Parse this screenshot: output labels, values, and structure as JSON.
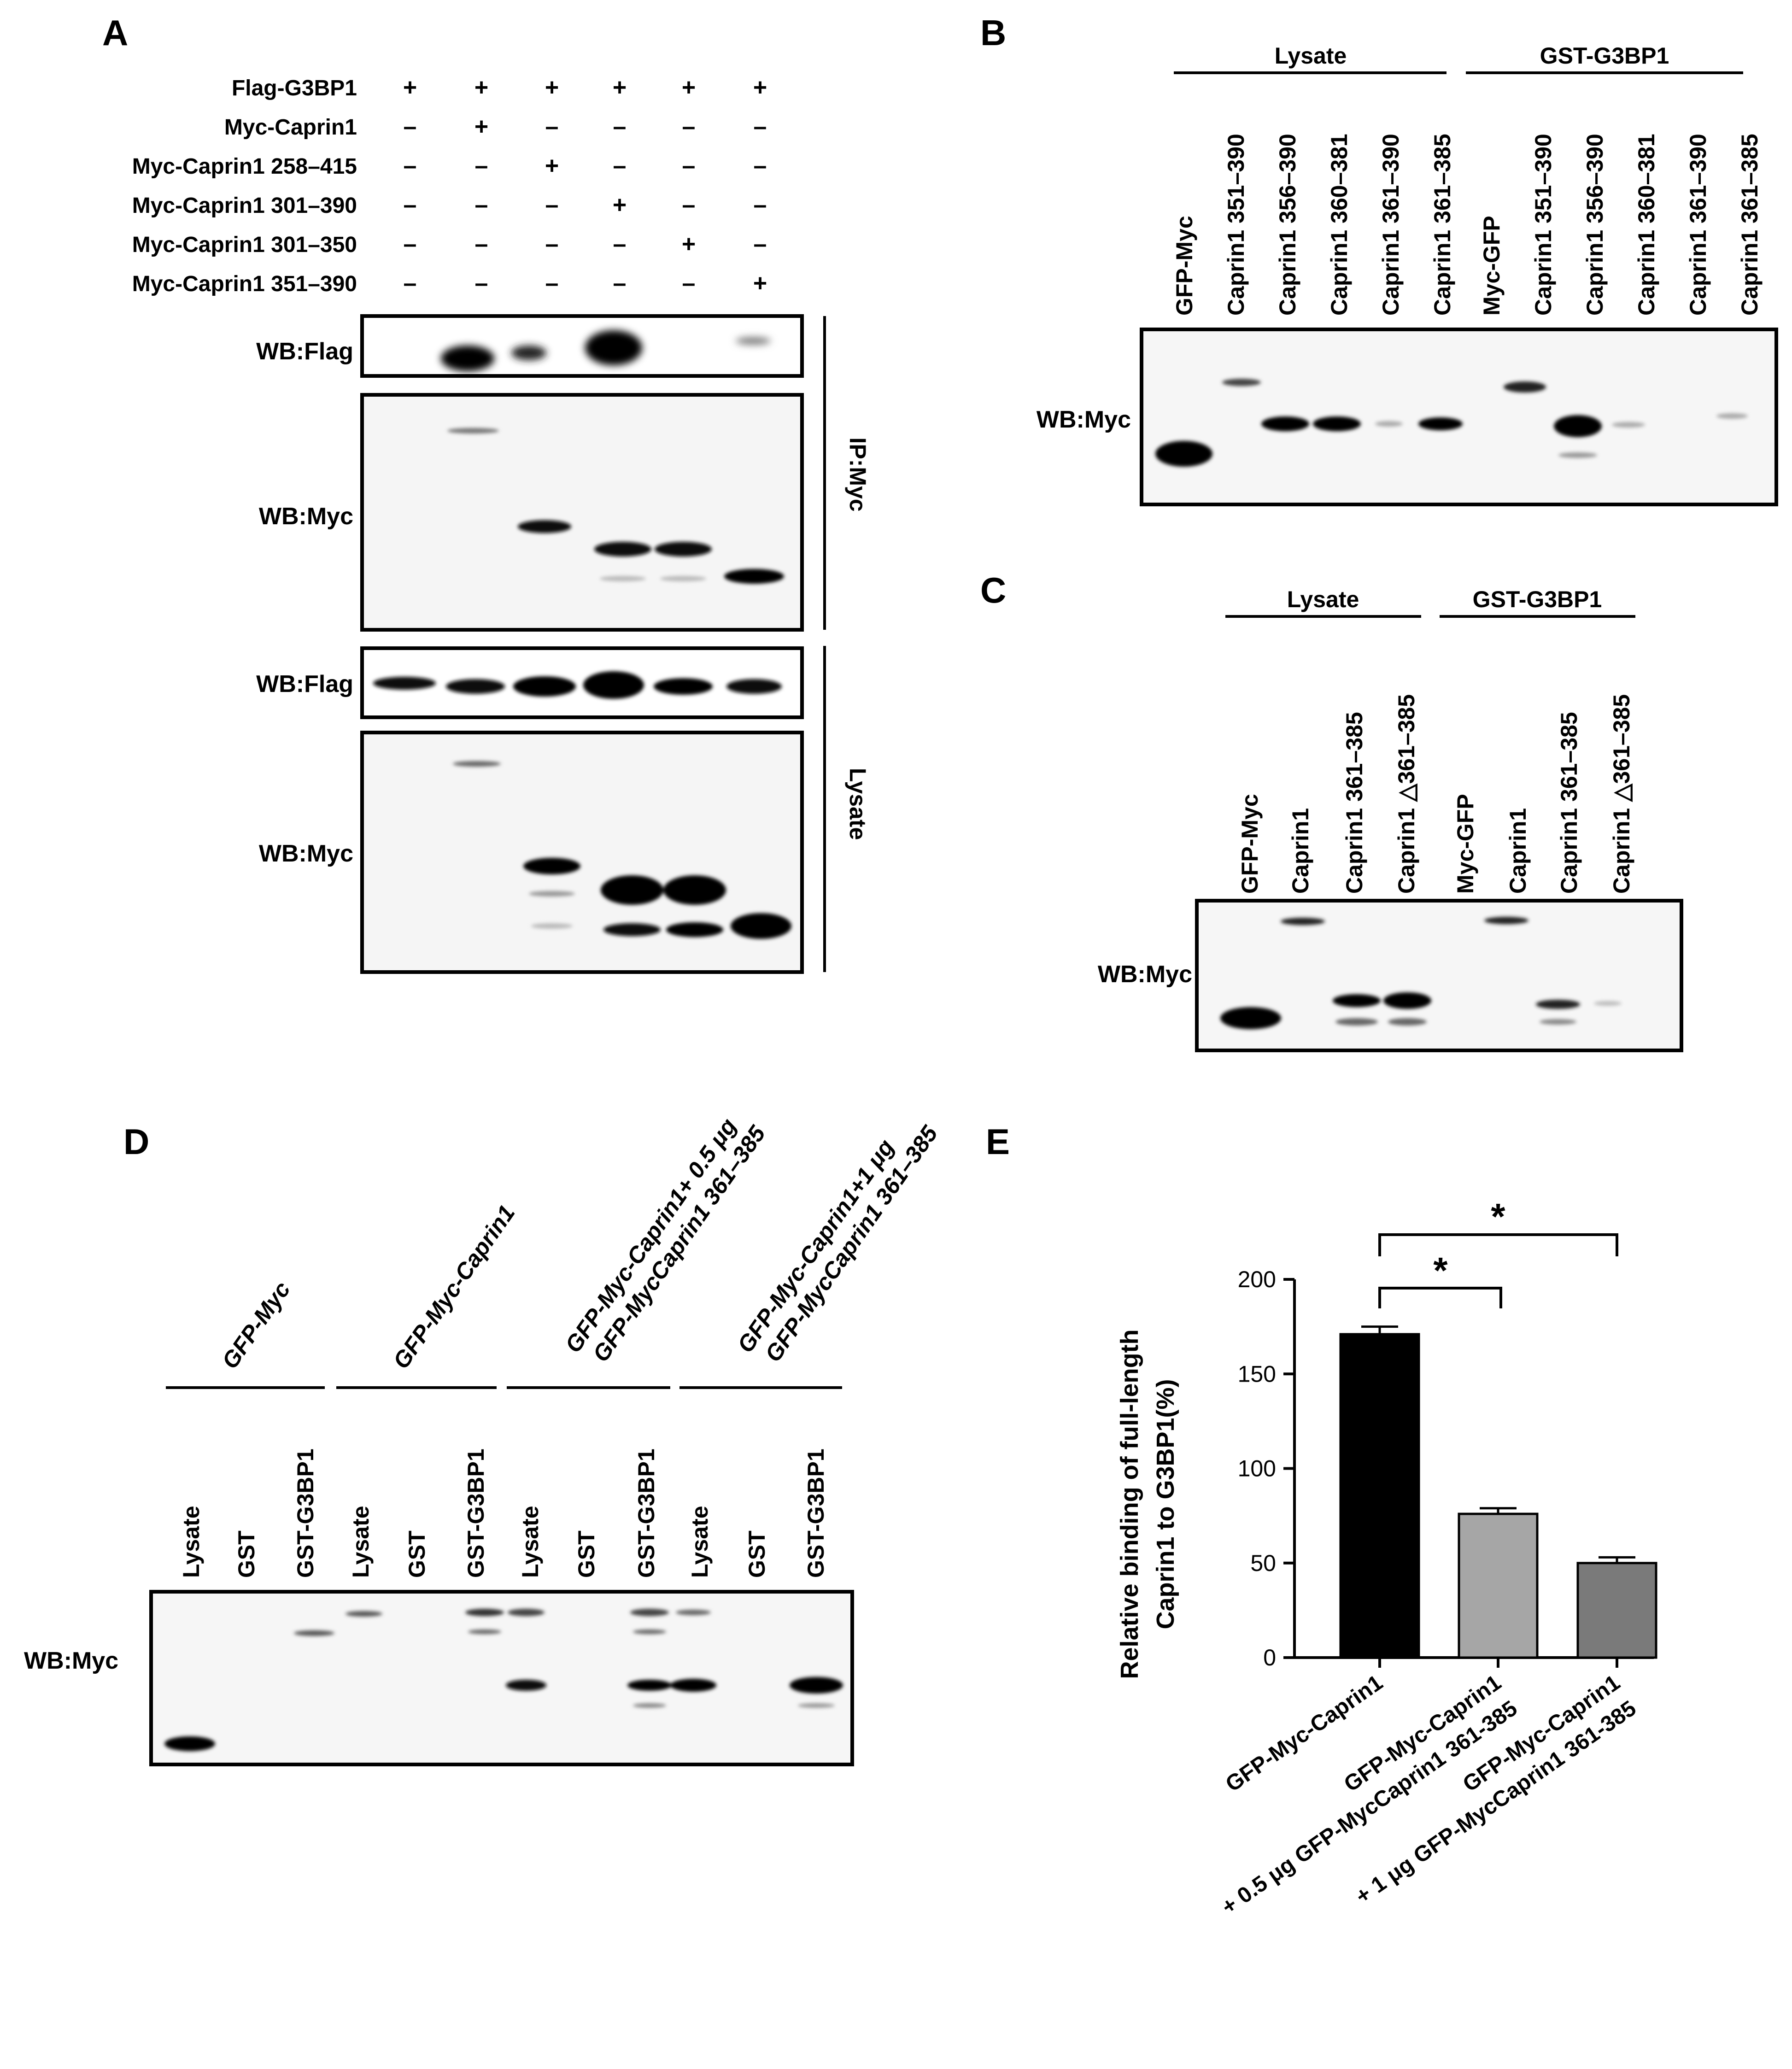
{
  "panels": {
    "A": {
      "letter": "A",
      "rows": [
        {
          "label": "Flag-G3BP1",
          "signs": [
            "+",
            "+",
            "+",
            "+",
            "+",
            "+"
          ]
        },
        {
          "label": "Myc-Caprin1",
          "signs": [
            "–",
            "+",
            "–",
            "–",
            "–",
            "–"
          ]
        },
        {
          "label": "Myc-Caprin1 258–415",
          "signs": [
            "–",
            "–",
            "+",
            "–",
            "–",
            "–"
          ]
        },
        {
          "label": "Myc-Caprin1 301–390",
          "signs": [
            "–",
            "–",
            "–",
            "+",
            "–",
            "–"
          ]
        },
        {
          "label": "Myc-Caprin1 301–350",
          "signs": [
            "–",
            "–",
            "–",
            "–",
            "+",
            "–"
          ]
        },
        {
          "label": "Myc-Caprin1 351–390",
          "signs": [
            "–",
            "–",
            "–",
            "–",
            "–",
            "+"
          ]
        }
      ],
      "blots": [
        "WB:Flag",
        "WB:Myc",
        "WB:Flag",
        "WB:Myc"
      ],
      "groups": [
        "IP:Myc",
        "Lysate"
      ]
    },
    "B": {
      "letter": "B",
      "groups": [
        "Lysate",
        "GST-G3BP1"
      ],
      "lanes": [
        "GFP-Myc",
        "Caprin1 351–390",
        "Caprin1 356–390",
        "Caprin1 360–381",
        "Caprin1 361–390",
        "Caprin1 361–385",
        "Myc-GFP",
        "Caprin1 351–390",
        "Caprin1 356–390",
        "Caprin1 360–381",
        "Caprin1 361–390",
        "Caprin1 361–385"
      ],
      "blot": "WB:Myc"
    },
    "C": {
      "letter": "C",
      "groups": [
        "Lysate",
        "GST-G3BP1"
      ],
      "lanes": [
        "GFP-Myc",
        "Caprin1",
        "Caprin1 361–385",
        "Caprin1 △361–385",
        "Myc-GFP",
        "Caprin1",
        "Caprin1 361–385",
        "Caprin1 △361–385"
      ],
      "blot": "WB:Myc"
    },
    "D": {
      "letter": "D",
      "conditions": [
        {
          "line1": "GFP-Myc",
          "line2": ""
        },
        {
          "line1": "GFP-Myc-Caprin1",
          "line2": ""
        },
        {
          "line1": "GFP-Myc-Caprin1+ 0.5 μg",
          "line2": "GFP-MycCaprin1 361–385"
        },
        {
          "line1": "GFP-Myc-Caprin1+1 μg",
          "line2": "GFP-MycCaprin1 361–385"
        }
      ],
      "lanes": [
        "Lysate",
        "GST",
        "GST-G3BP1",
        "Lysate",
        "GST",
        "GST-G3BP1",
        "Lysate",
        "GST",
        "GST-G3BP1",
        "Lysate",
        "GST",
        "GST-G3BP1"
      ],
      "blot": "WB:Myc"
    },
    "E": {
      "letter": "E",
      "sig1": "*",
      "sig2": "*"
    }
  },
  "chart_data": {
    "type": "bar",
    "title": "",
    "ylabel_line1": "Relative binding of full-length",
    "ylabel_line2": "Caprin1 to G3BP1(%)",
    "xlabel": "",
    "ylim": [
      0,
      200
    ],
    "yticks": [
      0,
      50,
      100,
      150,
      200
    ],
    "categories": [
      {
        "line1": "GFP-Myc-Caprin1",
        "line2": ""
      },
      {
        "line1": "GFP-Myc-Caprin1",
        "line2": "+ 0.5 μg GFP-MycCaprin1 361-385"
      },
      {
        "line1": "GFP-Myc-Caprin1",
        "line2": "+ 1 μg GFP-MycCaprin1 361-385"
      }
    ],
    "values": [
      171,
      76,
      50
    ],
    "errors": [
      4,
      3,
      3
    ],
    "colors": [
      "#000000",
      "#a6a6a6",
      "#7a7a7a"
    ],
    "grid": false
  }
}
